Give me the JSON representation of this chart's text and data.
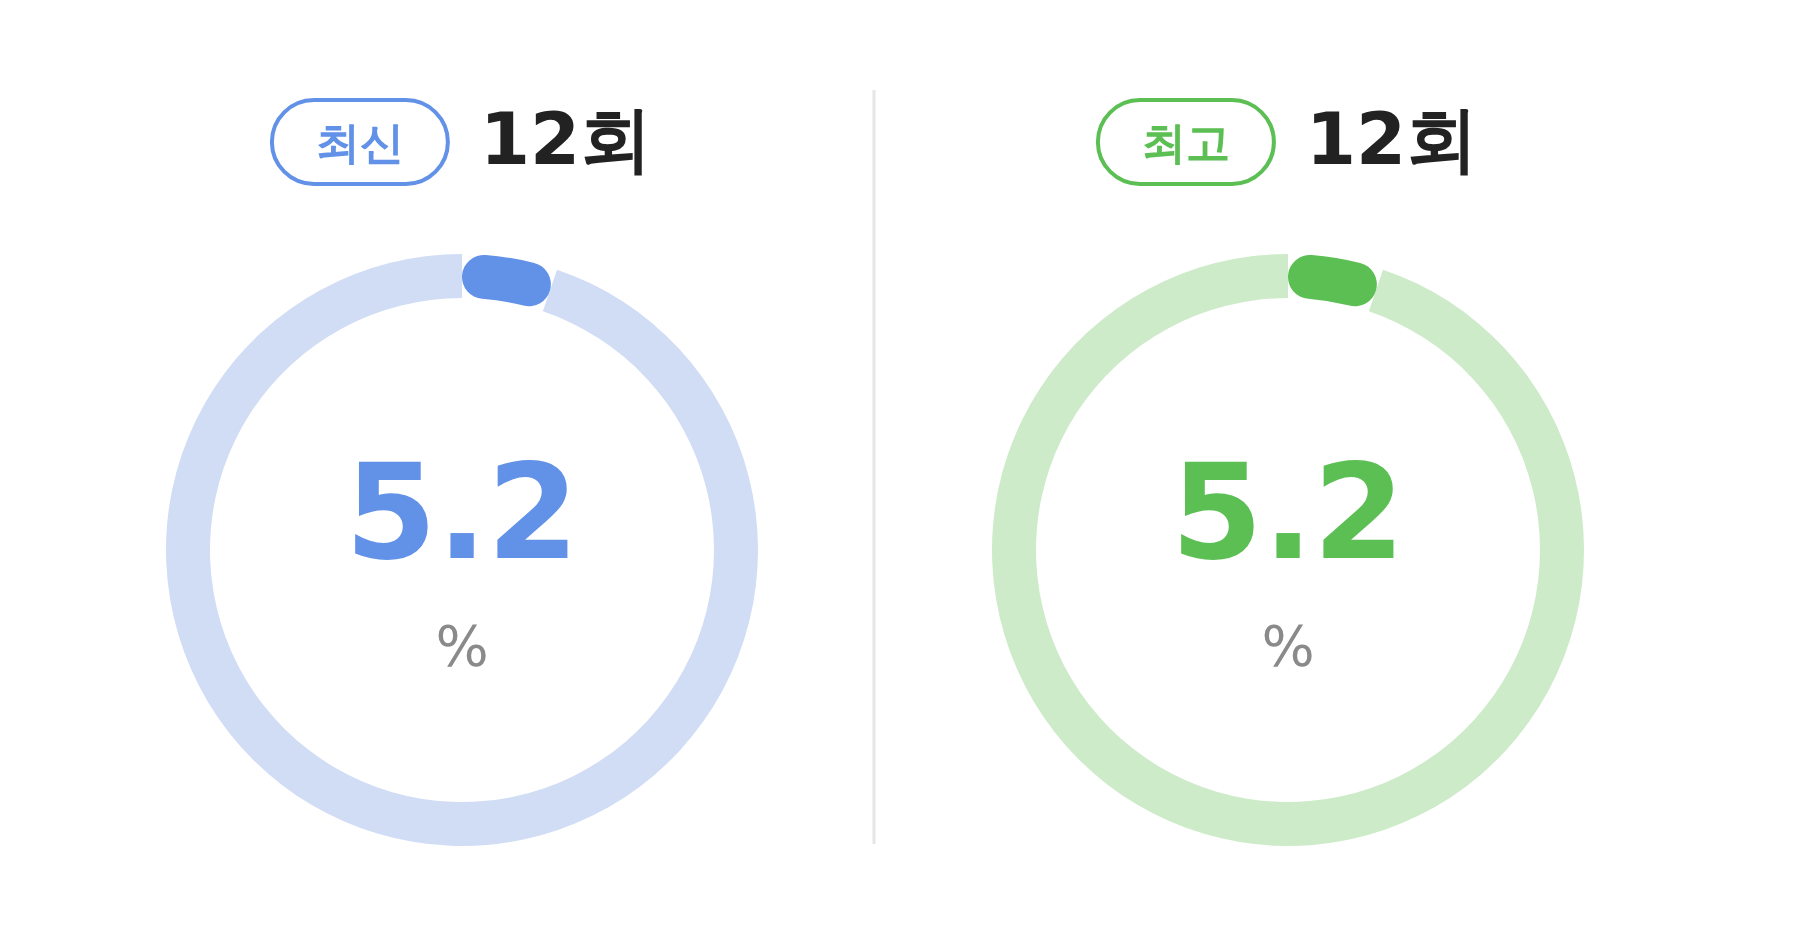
{
  "chart_data": [
    {
      "type": "donut",
      "title": "최신",
      "subtitle": "12회",
      "categories": [
        null,
        null
      ],
      "values": [
        5.2,
        94.8
      ],
      "colors": [
        "#6291e8",
        "#d0ddf5"
      ],
      "value_labels": [
        "5.2",
        null
      ],
      "annotations": [
        "%"
      ]
    },
    {
      "type": "donut",
      "title": "최고",
      "subtitle": "12회",
      "categories": [
        null,
        null
      ],
      "values": [
        5.2,
        94.8
      ],
      "colors": [
        "#5cbf54",
        "#cdebc9"
      ],
      "value_labels": [
        "5.2",
        null
      ],
      "annotations": [
        "%"
      ]
    }
  ]
}
